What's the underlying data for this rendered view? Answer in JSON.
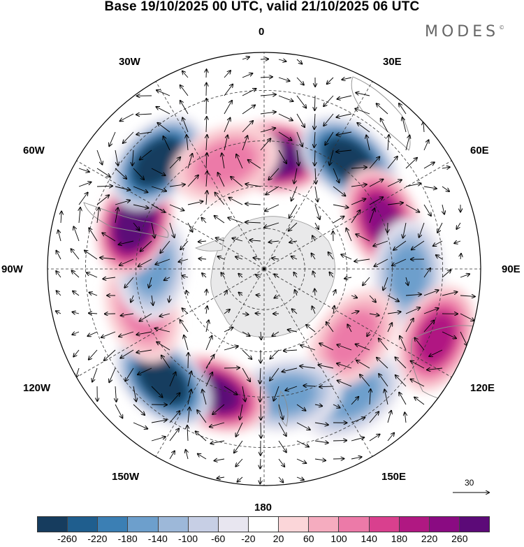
{
  "title": "Base 19/10/2025 00 UTC, valid 21/10/2025 06 UTC",
  "brand": {
    "name": "MODES",
    "mark": "©"
  },
  "longitude_labels": [
    "0",
    "30E",
    "60E",
    "90E",
    "120E",
    "150E",
    "180",
    "150W",
    "120W",
    "90W",
    "60W",
    "30W"
  ],
  "reference_vector": {
    "value": "30"
  },
  "colorbar": {
    "colors": [
      "#163c5e",
      "#1f5e8e",
      "#3b7fb4",
      "#6d9fcc",
      "#9db8d9",
      "#c7cfe5",
      "#e8e6f0",
      "#ffffff",
      "#fbd6d9",
      "#f5acbf",
      "#ec7aa8",
      "#d9408e",
      "#b01882",
      "#8a0b82",
      "#5c0a78"
    ],
    "tick_labels": [
      "-260",
      "-220",
      "-180",
      "-140",
      "-100",
      "-60",
      "-20",
      "20",
      "60",
      "100",
      "140",
      "180",
      "220",
      "260"
    ]
  },
  "anomaly_centers": [
    {
      "name": "positive-anomaly-center-0",
      "lon": 5,
      "lat": -50,
      "value": 260
    },
    {
      "name": "negative-anomaly-center-30e",
      "lon": 38,
      "lat": -42,
      "value": -260
    },
    {
      "name": "positive-anomaly-center-65e",
      "lon": 68,
      "lat": -45,
      "value": 180
    },
    {
      "name": "negative-anomaly-center-95e",
      "lon": 92,
      "lat": -40,
      "value": -100
    },
    {
      "name": "positive-anomaly-center-115e",
      "lon": 112,
      "lat": -28,
      "value": 140
    },
    {
      "name": "negative-anomaly-center-145e",
      "lon": 145,
      "lat": -37,
      "value": -100
    },
    {
      "name": "positive-anomaly-center-130e",
      "lon": 128,
      "lat": -50,
      "value": 60
    },
    {
      "name": "negative-anomaly-center-170e",
      "lon": 170,
      "lat": -45,
      "value": -100
    },
    {
      "name": "positive-anomaly-center-160w",
      "lon": -158,
      "lat": -43,
      "value": 220
    },
    {
      "name": "negative-anomaly-center-140w",
      "lon": -138,
      "lat": -38,
      "value": -260
    },
    {
      "name": "positive-anomaly-center-110w",
      "lon": -108,
      "lat": -45,
      "value": 60
    },
    {
      "name": "negative-anomaly-center-90w",
      "lon": -88,
      "lat": -50,
      "value": -100
    },
    {
      "name": "positive-anomaly-center-70w",
      "lon": -70,
      "lat": -42,
      "value": 260
    },
    {
      "name": "negative-anomaly-center-45w",
      "lon": -45,
      "lat": -38,
      "value": -260
    },
    {
      "name": "positive-anomaly-center-20w",
      "lon": -20,
      "lat": -50,
      "value": 60
    }
  ]
}
